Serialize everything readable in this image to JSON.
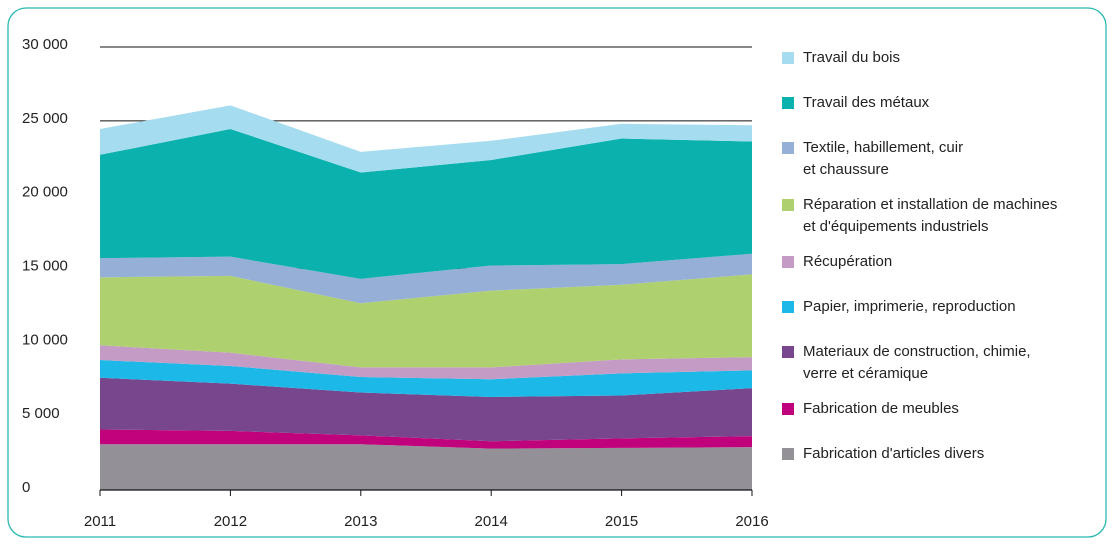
{
  "chart_data": {
    "type": "stacked_area",
    "x": [
      2011,
      2012,
      2013,
      2014,
      2015,
      2016
    ],
    "xlim": [
      2011,
      2016
    ],
    "ylim": [
      0,
      30000
    ],
    "yticks": [
      {
        "value": 0,
        "label": "0"
      },
      {
        "value": 5000,
        "label": "5 000"
      },
      {
        "value": 10000,
        "label": "10 000"
      },
      {
        "value": 15000,
        "label": "15 000"
      },
      {
        "value": 20000,
        "label": "20 000"
      },
      {
        "value": 25000,
        "label": "25 000"
      },
      {
        "value": 30000,
        "label": "30 000"
      }
    ],
    "grid": true,
    "legend": "right",
    "series": [
      {
        "name": "Fabrication d'articles divers",
        "color": "#949098",
        "values": [
          3100,
          3100,
          3100,
          2800,
          2850,
          2900
        ]
      },
      {
        "name": "Fabrication de meubles",
        "color": "#c0037c",
        "values": [
          1000,
          900,
          600,
          500,
          650,
          750
        ]
      },
      {
        "name": "Materiaux de construction, chimie,\nverre et céramique",
        "color": "#77468c",
        "values": [
          3500,
          3200,
          2900,
          3000,
          2900,
          3250
        ]
      },
      {
        "name": "Papier, imprimerie, reproduction",
        "color": "#1cb9e8",
        "values": [
          1200,
          1200,
          1050,
          1200,
          1500,
          1200
        ]
      },
      {
        "name": "Récupération",
        "color": "#c39bc5",
        "values": [
          1000,
          900,
          650,
          800,
          950,
          900
        ]
      },
      {
        "name": "Réparation et installation de machines\net d'équipements industriels",
        "color": "#afd06f",
        "values": [
          4600,
          5200,
          4350,
          5200,
          5050,
          5600
        ]
      },
      {
        "name": "Textile, habillement, cuir\net chaussure",
        "color": "#95afd6",
        "values": [
          1300,
          1300,
          1650,
          1700,
          1400,
          1400
        ]
      },
      {
        "name": "Travail des métaux",
        "color": "#0bb1ad",
        "values": [
          7000,
          8650,
          7200,
          7150,
          8500,
          7600
        ]
      },
      {
        "name": "Travail du bois",
        "color": "#a6dcef",
        "values": [
          1750,
          1600,
          1400,
          1300,
          1000,
          1100
        ]
      }
    ]
  }
}
